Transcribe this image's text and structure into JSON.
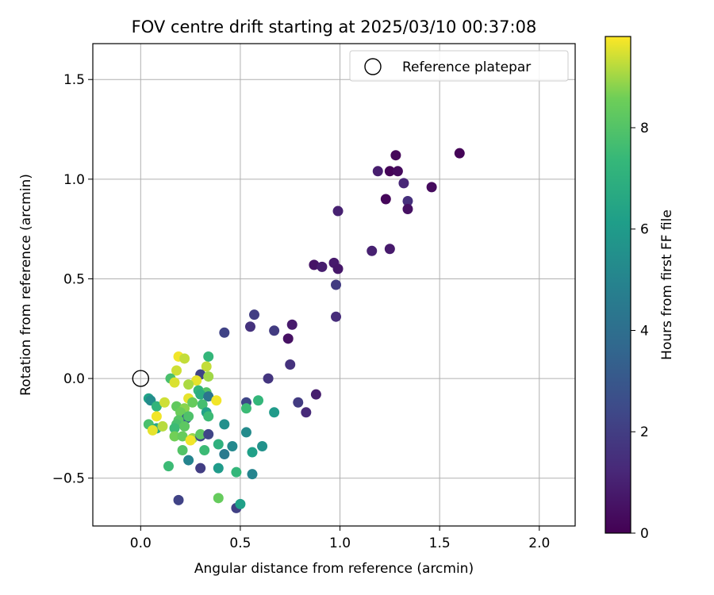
{
  "chart_data": {
    "type": "scatter",
    "title": "FOV centre drift starting at 2025/03/10 00:37:08",
    "xlabel": "Angular distance from reference (arcmin)",
    "ylabel": "Rotation from reference (arcmin)",
    "xlim": [
      -0.24,
      2.18
    ],
    "ylim": [
      -0.74,
      1.68
    ],
    "xticks": [
      0.0,
      0.5,
      1.0,
      1.5,
      2.0
    ],
    "xtick_labels": [
      "0.0",
      "0.5",
      "1.0",
      "1.5",
      "2.0"
    ],
    "yticks": [
      -0.5,
      0.0,
      0.5,
      1.0,
      1.5
    ],
    "ytick_labels": [
      "−0.5",
      "0.0",
      "0.5",
      "1.0",
      "1.5"
    ],
    "grid": true,
    "legend": {
      "position": "top-right",
      "entries": [
        {
          "label": "Reference platepar",
          "marker": "open-circle"
        }
      ]
    },
    "reference_point": {
      "x": 0.0,
      "y": 0.0
    },
    "colorbar": {
      "label": "Hours from first FF file",
      "colormap": "viridis",
      "range": [
        0,
        9.8
      ],
      "ticks": [
        0,
        2,
        4,
        6,
        8
      ],
      "tick_labels": [
        "0",
        "2",
        "4",
        "6",
        "8"
      ]
    },
    "points": [
      {
        "x": 1.6,
        "y": 1.13,
        "t": 0.1
      },
      {
        "x": 1.28,
        "y": 1.12,
        "t": 0.2
      },
      {
        "x": 1.25,
        "y": 1.04,
        "t": 0.1
      },
      {
        "x": 1.29,
        "y": 1.04,
        "t": 0.3
      },
      {
        "x": 1.19,
        "y": 1.04,
        "t": 0.9
      },
      {
        "x": 1.32,
        "y": 0.98,
        "t": 1.2
      },
      {
        "x": 1.46,
        "y": 0.96,
        "t": 0.3
      },
      {
        "x": 1.23,
        "y": 0.9,
        "t": 0.2
      },
      {
        "x": 1.34,
        "y": 0.89,
        "t": 1.5
      },
      {
        "x": 1.34,
        "y": 0.85,
        "t": 0.5
      },
      {
        "x": 0.99,
        "y": 0.84,
        "t": 1.0
      },
      {
        "x": 1.25,
        "y": 0.65,
        "t": 0.8
      },
      {
        "x": 1.16,
        "y": 0.64,
        "t": 1.0
      },
      {
        "x": 0.97,
        "y": 0.58,
        "t": 0.8
      },
      {
        "x": 0.87,
        "y": 0.57,
        "t": 0.6
      },
      {
        "x": 0.91,
        "y": 0.56,
        "t": 0.9
      },
      {
        "x": 0.99,
        "y": 0.55,
        "t": 0.7
      },
      {
        "x": 0.98,
        "y": 0.47,
        "t": 1.9
      },
      {
        "x": 0.57,
        "y": 0.32,
        "t": 2.0
      },
      {
        "x": 0.98,
        "y": 0.31,
        "t": 1.4
      },
      {
        "x": 0.76,
        "y": 0.27,
        "t": 0.8
      },
      {
        "x": 0.55,
        "y": 0.26,
        "t": 1.6
      },
      {
        "x": 0.67,
        "y": 0.24,
        "t": 1.9
      },
      {
        "x": 0.42,
        "y": 0.23,
        "t": 2.2
      },
      {
        "x": 0.74,
        "y": 0.2,
        "t": 0.5
      },
      {
        "x": 0.75,
        "y": 0.07,
        "t": 1.6
      },
      {
        "x": 0.64,
        "y": 0.0,
        "t": 1.7
      },
      {
        "x": 0.88,
        "y": -0.08,
        "t": 0.9
      },
      {
        "x": 0.79,
        "y": -0.12,
        "t": 1.9
      },
      {
        "x": 0.83,
        "y": -0.17,
        "t": 1.3
      },
      {
        "x": 0.53,
        "y": -0.12,
        "t": 2.3
      },
      {
        "x": 0.53,
        "y": -0.15,
        "t": 7.5
      },
      {
        "x": 0.59,
        "y": -0.11,
        "t": 7.3
      },
      {
        "x": 0.67,
        "y": -0.17,
        "t": 6.0
      },
      {
        "x": 0.42,
        "y": -0.23,
        "t": 5.5
      },
      {
        "x": 0.53,
        "y": -0.27,
        "t": 5.3
      },
      {
        "x": 0.46,
        "y": -0.34,
        "t": 5.2
      },
      {
        "x": 0.42,
        "y": -0.38,
        "t": 4.5
      },
      {
        "x": 0.61,
        "y": -0.34,
        "t": 5.6
      },
      {
        "x": 0.56,
        "y": -0.37,
        "t": 6.2
      },
      {
        "x": 0.39,
        "y": -0.33,
        "t": 7.0
      },
      {
        "x": 0.32,
        "y": -0.36,
        "t": 7.5
      },
      {
        "x": 0.24,
        "y": -0.41,
        "t": 5.0
      },
      {
        "x": 0.39,
        "y": -0.45,
        "t": 6.0
      },
      {
        "x": 0.48,
        "y": -0.47,
        "t": 7.3
      },
      {
        "x": 0.56,
        "y": -0.48,
        "t": 5.0
      },
      {
        "x": 0.3,
        "y": -0.45,
        "t": 2.0
      },
      {
        "x": 0.14,
        "y": -0.44,
        "t": 7.5
      },
      {
        "x": 0.19,
        "y": -0.61,
        "t": 2.2
      },
      {
        "x": 0.39,
        "y": -0.6,
        "t": 8.4
      },
      {
        "x": 0.48,
        "y": -0.65,
        "t": 2.1
      },
      {
        "x": 0.5,
        "y": -0.63,
        "t": 6.2
      },
      {
        "x": 0.34,
        "y": 0.11,
        "t": 7.3
      },
      {
        "x": 0.19,
        "y": 0.11,
        "t": 9.7
      },
      {
        "x": 0.22,
        "y": 0.1,
        "t": 9.3
      },
      {
        "x": 0.33,
        "y": 0.06,
        "t": 9.3
      },
      {
        "x": 0.18,
        "y": 0.04,
        "t": 9.4
      },
      {
        "x": 0.3,
        "y": 0.02,
        "t": 2.2
      },
      {
        "x": 0.34,
        "y": 0.01,
        "t": 9.0
      },
      {
        "x": 0.15,
        "y": 0.0,
        "t": 7.8
      },
      {
        "x": 0.17,
        "y": -0.02,
        "t": 9.5
      },
      {
        "x": 0.28,
        "y": -0.01,
        "t": 9.6
      },
      {
        "x": 0.24,
        "y": -0.03,
        "t": 9.1
      },
      {
        "x": 0.29,
        "y": -0.06,
        "t": 7.2
      },
      {
        "x": 0.33,
        "y": -0.07,
        "t": 8.0
      },
      {
        "x": 0.3,
        "y": -0.08,
        "t": 6.8
      },
      {
        "x": 0.34,
        "y": -0.09,
        "t": 4.3
      },
      {
        "x": 0.38,
        "y": -0.11,
        "t": 9.7
      },
      {
        "x": 0.04,
        "y": -0.1,
        "t": 6.3
      },
      {
        "x": 0.05,
        "y": -0.11,
        "t": 5.4
      },
      {
        "x": 0.08,
        "y": -0.14,
        "t": 7.2
      },
      {
        "x": 0.12,
        "y": -0.12,
        "t": 9.4
      },
      {
        "x": 0.18,
        "y": -0.14,
        "t": 8.3
      },
      {
        "x": 0.22,
        "y": -0.15,
        "t": 8.8
      },
      {
        "x": 0.24,
        "y": -0.1,
        "t": 9.6
      },
      {
        "x": 0.26,
        "y": -0.12,
        "t": 8.4
      },
      {
        "x": 0.31,
        "y": -0.13,
        "t": 7.7
      },
      {
        "x": 0.33,
        "y": -0.17,
        "t": 6.3
      },
      {
        "x": 0.34,
        "y": -0.19,
        "t": 7.5
      },
      {
        "x": 0.2,
        "y": -0.17,
        "t": 8.5
      },
      {
        "x": 0.23,
        "y": -0.2,
        "t": 3.2
      },
      {
        "x": 0.24,
        "y": -0.19,
        "t": 7.9
      },
      {
        "x": 0.19,
        "y": -0.21,
        "t": 8.1
      },
      {
        "x": 0.18,
        "y": -0.23,
        "t": 7.8
      },
      {
        "x": 0.08,
        "y": -0.19,
        "t": 9.7
      },
      {
        "x": 0.04,
        "y": -0.23,
        "t": 7.8
      },
      {
        "x": 0.08,
        "y": -0.25,
        "t": 6.6
      },
      {
        "x": 0.06,
        "y": -0.26,
        "t": 9.6
      },
      {
        "x": 0.11,
        "y": -0.24,
        "t": 9.2
      },
      {
        "x": 0.17,
        "y": -0.25,
        "t": 7.5
      },
      {
        "x": 0.22,
        "y": -0.24,
        "t": 8.2
      },
      {
        "x": 0.17,
        "y": -0.29,
        "t": 8.6
      },
      {
        "x": 0.21,
        "y": -0.29,
        "t": 8.4
      },
      {
        "x": 0.26,
        "y": -0.3,
        "t": 8.9
      },
      {
        "x": 0.25,
        "y": -0.31,
        "t": 9.7
      },
      {
        "x": 0.3,
        "y": -0.29,
        "t": 2.3
      },
      {
        "x": 0.3,
        "y": -0.28,
        "t": 8.2
      },
      {
        "x": 0.34,
        "y": -0.28,
        "t": 2.3
      },
      {
        "x": 0.21,
        "y": -0.36,
        "t": 8.0
      }
    ]
  }
}
